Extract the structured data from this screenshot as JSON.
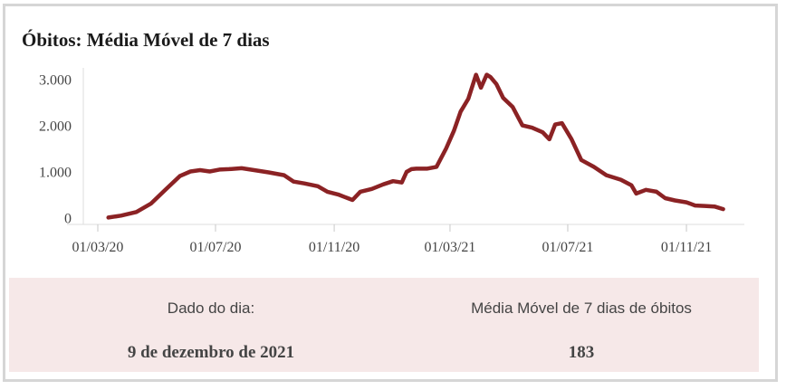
{
  "header": {
    "title": "Óbitos: Média Móvel de 7 dias"
  },
  "colors": {
    "line": "#8b2224",
    "panel": "#f6e8e8",
    "border": "#d6d6d6"
  },
  "info": {
    "date_label": "Dado do dia:",
    "date_value": "9 de dezembro de 2021",
    "avg_label": "Média Móvel de 7 dias de óbitos",
    "avg_value": "183"
  },
  "chart_data": {
    "type": "line",
    "title": "Óbitos: Média Móvel de 7 dias",
    "xlabel": "",
    "ylabel": "",
    "x_ticks": [
      "01/03/20",
      "01/07/20",
      "01/11/20",
      "01/03/21",
      "01/07/21",
      "01/11/21"
    ],
    "y_ticks": [
      "0",
      "1.000",
      "2.000",
      "3.000"
    ],
    "ylim": [
      -150,
      3250
    ],
    "xlim": [
      "2020-02-15",
      "2021-12-31"
    ],
    "grid": false,
    "series": [
      {
        "x": [
          "2020-03-12",
          "2020-03-25",
          "2020-04-10",
          "2020-04-25",
          "2020-05-10",
          "2020-05-25",
          "2020-06-05",
          "2020-06-15",
          "2020-06-25",
          "2020-07-05",
          "2020-07-15",
          "2020-07-28",
          "2020-08-10",
          "2020-08-25",
          "2020-09-10",
          "2020-09-20",
          "2020-10-01",
          "2020-10-15",
          "2020-10-25",
          "2020-11-05",
          "2020-11-15",
          "2020-11-20",
          "2020-11-28",
          "2020-12-10",
          "2020-12-22",
          "2021-01-01",
          "2021-01-10",
          "2021-01-15",
          "2021-01-20",
          "2021-01-25",
          "2021-02-05",
          "2021-02-15",
          "2021-02-25",
          "2021-03-05",
          "2021-03-12",
          "2021-03-20",
          "2021-03-28",
          "2021-04-02",
          "2021-04-08",
          "2021-04-12",
          "2021-04-18",
          "2021-04-25",
          "2021-05-05",
          "2021-05-15",
          "2021-05-25",
          "2021-06-05",
          "2021-06-12",
          "2021-06-18",
          "2021-06-25",
          "2021-07-05",
          "2021-07-15",
          "2021-07-28",
          "2021-08-10",
          "2021-08-25",
          "2021-09-05",
          "2021-09-10",
          "2021-09-20",
          "2021-10-01",
          "2021-10-10",
          "2021-10-20",
          "2021-11-01",
          "2021-11-10",
          "2021-11-20",
          "2021-11-30",
          "2021-12-09"
        ],
        "y": [
          0,
          40,
          120,
          300,
          600,
          900,
          1000,
          1030,
          1000,
          1040,
          1050,
          1070,
          1030,
          980,
          920,
          780,
          740,
          680,
          560,
          500,
          420,
          380,
          560,
          620,
          720,
          790,
          760,
          990,
          1050,
          1060,
          1060,
          1100,
          1500,
          1880,
          2300,
          2580,
          3100,
          2820,
          3100,
          3050,
          2900,
          2600,
          2400,
          2000,
          1950,
          1850,
          1700,
          2020,
          2050,
          1700,
          1250,
          1100,
          920,
          820,
          700,
          520,
          600,
          560,
          420,
          370,
          330,
          260,
          250,
          240,
          183
        ]
      }
    ]
  }
}
